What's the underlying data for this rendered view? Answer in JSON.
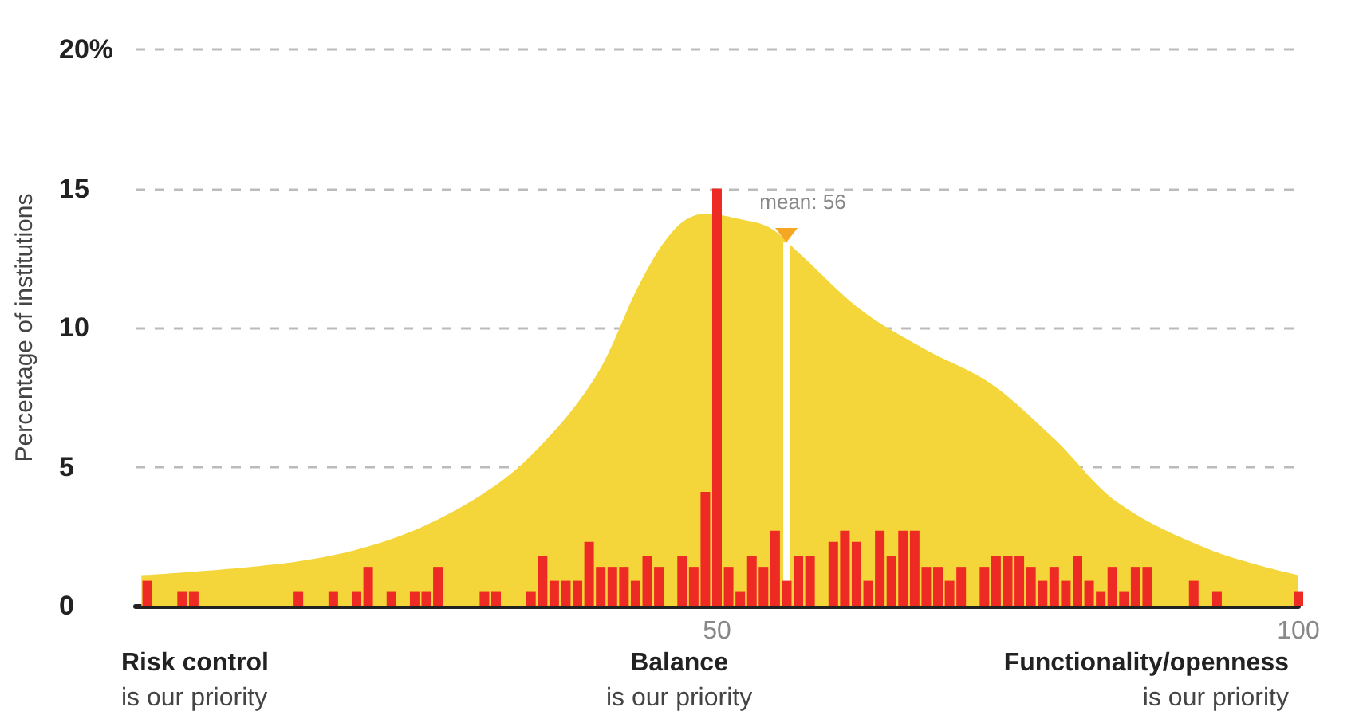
{
  "chart_data": {
    "type": "bar",
    "ylabel": "Percentage of institutions",
    "series": [
      {
        "type": "area",
        "color": "#f5d63a",
        "x": [
          0.5,
          14,
          22,
          29,
          34,
          39.5,
          43.5,
          46.5,
          49,
          52,
          54.5,
          57,
          62.5,
          68,
          73.5,
          79,
          84.5,
          92.5,
          100
        ],
        "values": [
          1.1,
          1.6,
          2.4,
          3.8,
          5.4,
          8.2,
          11.7,
          13.6,
          14.1,
          13.9,
          13.6,
          12.7,
          10.6,
          9.2,
          8.0,
          6.0,
          3.7,
          2.0,
          1.1
        ]
      },
      {
        "color": "#ee2a24",
        "x": [
          1,
          4,
          5,
          14,
          17,
          19,
          20,
          22,
          24,
          25,
          26,
          30,
          31,
          34,
          35,
          36,
          37,
          38,
          39,
          40,
          41,
          42,
          43,
          44,
          45,
          47,
          48,
          49,
          50,
          51,
          52,
          53,
          54,
          55,
          56,
          57,
          58,
          60,
          61,
          62,
          63,
          64,
          65,
          66,
          67,
          68,
          69,
          70,
          71,
          73,
          74,
          75,
          76,
          77,
          78,
          79,
          80,
          81,
          82,
          83,
          84,
          85,
          86,
          87,
          91,
          93,
          100
        ],
        "values": [
          0.9,
          0.5,
          0.5,
          0.5,
          0.5,
          0.5,
          1.4,
          0.5,
          0.5,
          0.5,
          1.4,
          0.5,
          0.5,
          0.5,
          1.8,
          0.9,
          0.9,
          0.9,
          2.3,
          1.4,
          1.4,
          1.4,
          0.9,
          1.8,
          1.4,
          1.8,
          1.4,
          4.1,
          15,
          1.4,
          0.5,
          1.8,
          1.4,
          2.7,
          0.9,
          1.8,
          1.8,
          2.3,
          2.7,
          2.3,
          0.9,
          2.7,
          1.8,
          2.7,
          2.7,
          1.4,
          1.4,
          0.9,
          1.4,
          1.4,
          1.8,
          1.8,
          1.8,
          1.4,
          0.9,
          1.4,
          0.9,
          1.8,
          0.9,
          0.5,
          1.4,
          0.5,
          1.4,
          1.4,
          0.9,
          0.5,
          0.5
        ]
      }
    ],
    "xlim": [
      0,
      100
    ],
    "xticks": [
      {
        "value": 50,
        "label": "50"
      },
      {
        "value": 100,
        "label": "100"
      }
    ],
    "ylim": [
      0,
      20
    ],
    "yticks": [
      0,
      5,
      10,
      15,
      {
        "value": 20,
        "label": "20%"
      }
    ],
    "grid": "y",
    "ref_lines": [
      {
        "axis": "x",
        "value": 56,
        "label": "mean: 56",
        "color": "#ffffff"
      }
    ],
    "annotations": [
      "Risk control\nis our priority",
      "Balance\nis our priority",
      "Functionality/openness\nis our priority"
    ]
  }
}
